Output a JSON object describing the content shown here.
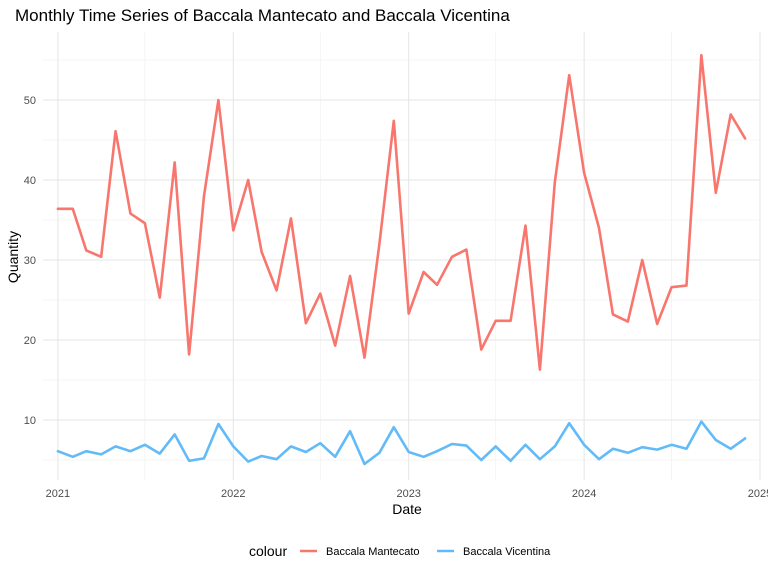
{
  "chart_data": {
    "type": "line",
    "title": "Monthly Time Series of Baccala Mantecato and Baccala Vicentina",
    "xlabel": "Date",
    "ylabel": "Quantity",
    "x_ticks": [
      "2021",
      "2022",
      "2023",
      "2024",
      "2025"
    ],
    "y_ticks": [
      10,
      20,
      30,
      40,
      50
    ],
    "xlim": [
      "2020-12-01",
      "2025-01-01"
    ],
    "ylim": [
      2.5,
      58.5
    ],
    "grid": true,
    "legend": {
      "title": "colour",
      "placement": "bottom"
    },
    "x": [
      "2021-01",
      "2021-02",
      "2021-03",
      "2021-04",
      "2021-05",
      "2021-06",
      "2021-07",
      "2021-08",
      "2021-09",
      "2021-10",
      "2021-11",
      "2021-12",
      "2022-01",
      "2022-02",
      "2022-03",
      "2022-04",
      "2022-05",
      "2022-06",
      "2022-07",
      "2022-08",
      "2022-09",
      "2022-10",
      "2022-11",
      "2022-12",
      "2023-01",
      "2023-02",
      "2023-03",
      "2023-04",
      "2023-05",
      "2023-06",
      "2023-07",
      "2023-08",
      "2023-09",
      "2023-10",
      "2023-11",
      "2023-12",
      "2024-01",
      "2024-02",
      "2024-03",
      "2024-04",
      "2024-05",
      "2024-06",
      "2024-07",
      "2024-08",
      "2024-09",
      "2024-10",
      "2024-11",
      "2024-12"
    ],
    "series": [
      {
        "name": "Baccala Mantecato",
        "color": "#f8766d",
        "values": [
          36.4,
          36.4,
          31.2,
          30.4,
          46.1,
          35.8,
          34.6,
          25.3,
          42.2,
          18.2,
          38.0,
          50.0,
          33.7,
          40.0,
          31.0,
          26.2,
          35.2,
          22.1,
          25.8,
          19.3,
          28.0,
          17.8,
          32.0,
          47.4,
          23.3,
          28.5,
          26.9,
          30.4,
          31.3,
          18.8,
          22.4,
          22.4,
          34.3,
          16.3,
          39.7,
          53.1,
          40.9,
          34.0,
          23.2,
          22.3,
          30.0,
          22.0,
          26.6,
          26.8,
          55.6,
          38.4,
          48.2,
          45.2
        ]
      },
      {
        "name": "Baccala Vicentina",
        "color": "#62bbf8",
        "values": [
          6.1,
          5.4,
          6.1,
          5.7,
          6.7,
          6.1,
          6.9,
          5.8,
          8.2,
          4.9,
          5.2,
          9.5,
          6.7,
          4.8,
          5.5,
          5.1,
          6.7,
          6.0,
          7.1,
          5.4,
          8.6,
          4.5,
          5.9,
          9.1,
          6.0,
          5.4,
          6.1,
          7.0,
          6.8,
          5.0,
          6.7,
          4.9,
          6.9,
          5.1,
          6.7,
          9.6,
          6.9,
          5.1,
          6.4,
          5.9,
          6.6,
          6.3,
          6.9,
          6.4,
          9.8,
          7.5,
          6.4,
          7.7
        ]
      }
    ]
  }
}
